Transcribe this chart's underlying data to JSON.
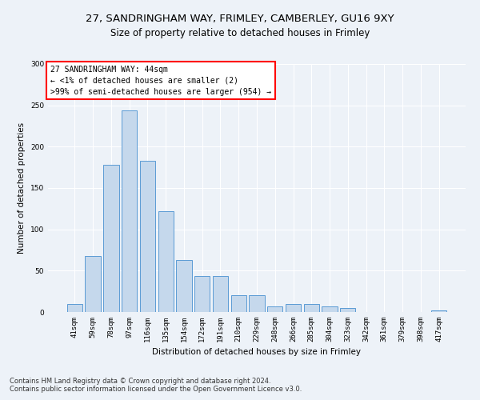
{
  "title1": "27, SANDRINGHAM WAY, FRIMLEY, CAMBERLEY, GU16 9XY",
  "title2": "Size of property relative to detached houses in Frimley",
  "xlabel": "Distribution of detached houses by size in Frimley",
  "ylabel": "Number of detached properties",
  "categories": [
    "41sqm",
    "59sqm",
    "78sqm",
    "97sqm",
    "116sqm",
    "135sqm",
    "154sqm",
    "172sqm",
    "191sqm",
    "210sqm",
    "229sqm",
    "248sqm",
    "266sqm",
    "285sqm",
    "304sqm",
    "323sqm",
    "342sqm",
    "361sqm",
    "379sqm",
    "398sqm",
    "417sqm"
  ],
  "values": [
    10,
    68,
    178,
    244,
    183,
    122,
    63,
    44,
    44,
    20,
    20,
    7,
    10,
    10,
    7,
    5,
    0,
    0,
    0,
    0,
    2
  ],
  "bar_color": "#c5d8ec",
  "bar_edge_color": "#5b9bd5",
  "annotation_box_text": "27 SANDRINGHAM WAY: 44sqm\n← <1% of detached houses are smaller (2)\n>99% of semi-detached houses are larger (954) →",
  "ylim": [
    0,
    300
  ],
  "yticks": [
    0,
    50,
    100,
    150,
    200,
    250,
    300
  ],
  "footer1": "Contains HM Land Registry data © Crown copyright and database right 2024.",
  "footer2": "Contains public sector information licensed under the Open Government Licence v3.0.",
  "bg_color": "#edf2f8",
  "plot_bg_color": "#edf2f8",
  "grid_color": "#ffffff",
  "title_fontsize": 9.5,
  "subtitle_fontsize": 8.5,
  "axis_label_fontsize": 7.5,
  "tick_fontsize": 6.5,
  "footer_fontsize": 6.0,
  "annotation_fontsize": 7.0
}
